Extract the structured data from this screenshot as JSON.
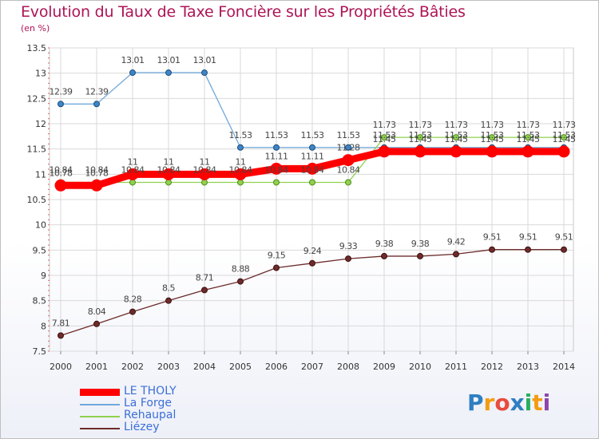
{
  "header": {
    "title": "Evolution du Taux de Taxe Foncière sur les Propriétés Bâties",
    "subtitle": "(en %)"
  },
  "brand": {
    "letters": [
      "P",
      "r",
      "o",
      "x",
      "i",
      "t",
      "i"
    ],
    "colors": [
      "#2f7fc1",
      "#f39c12",
      "#e74c3c",
      "#2f7fc1",
      "#27ae60",
      "#f39c12",
      "#8e44ad"
    ]
  },
  "chart_data": {
    "type": "line",
    "title": "Evolution du Taux de Taxe Foncière sur les Propriétés Bâties",
    "ylabel": "(en %)",
    "xlabel": "",
    "x": [
      "2000",
      "2001",
      "2002",
      "2003",
      "2004",
      "2005",
      "2006",
      "2007",
      "2008",
      "2009",
      "2010",
      "2011",
      "2012",
      "2013",
      "2014"
    ],
    "ylim": [
      7.5,
      13.5
    ],
    "yticks": [
      "7.5",
      "8",
      "8.5",
      "9",
      "9.5",
      "10",
      "10.5",
      "11",
      "11.5",
      "12",
      "12.5",
      "13",
      "13.5"
    ],
    "grid": true,
    "legend_position": "bottom-left",
    "series": [
      {
        "name": "LE THOLY",
        "color": "#ff0000",
        "values": [
          10.78,
          10.78,
          11,
          11,
          11,
          11,
          11.11,
          11.11,
          11.28,
          11.45,
          11.45,
          11.45,
          11.45,
          11.45,
          11.45
        ],
        "labels": [
          "10.78",
          "10.78",
          "11",
          "11",
          "11",
          "11",
          "11.11",
          "11.11",
          "11.28",
          "11.45",
          "11.45",
          "11.45",
          "11.45",
          "11.45",
          "11.45"
        ]
      },
      {
        "name": "La Forge",
        "color": "#6fa8dc",
        "values": [
          12.39,
          12.39,
          13.01,
          13.01,
          13.01,
          11.53,
          11.53,
          11.53,
          11.53,
          11.53,
          11.53,
          11.53,
          11.53,
          11.53,
          11.53
        ],
        "labels": [
          "12.39",
          "12.39",
          "13.01",
          "13.01",
          "13.01",
          "11.53",
          "11.53",
          "11.53",
          "11.53",
          "11.53",
          "11.53",
          "11.53",
          "11.53",
          "11.53",
          "11.53"
        ]
      },
      {
        "name": "Rehaupal",
        "color": "#8fd14f",
        "values": [
          10.84,
          10.84,
          10.84,
          10.84,
          10.84,
          10.84,
          10.84,
          10.84,
          10.84,
          11.73,
          11.73,
          11.73,
          11.73,
          11.73,
          11.73
        ],
        "labels": [
          "10.84",
          "10.84",
          "10.84",
          "10.84",
          "10.84",
          "10.84",
          "10.84",
          "10.84",
          "10.84",
          "11.73",
          "11.73",
          "11.73",
          "11.73",
          "11.73",
          "11.73"
        ]
      },
      {
        "name": "Liézey",
        "color": "#6d2b2b",
        "values": [
          7.81,
          8.04,
          8.28,
          8.5,
          8.71,
          8.88,
          9.15,
          9.24,
          9.33,
          9.38,
          9.38,
          9.42,
          9.51,
          9.51,
          9.51
        ],
        "labels": [
          "7.81",
          "8.04",
          "8.28",
          "8.5",
          "8.71",
          "8.88",
          "9.15",
          "9.24",
          "9.33",
          "9.38",
          "9.38",
          "9.42",
          "9.51",
          "9.51",
          "9.51"
        ]
      }
    ]
  }
}
